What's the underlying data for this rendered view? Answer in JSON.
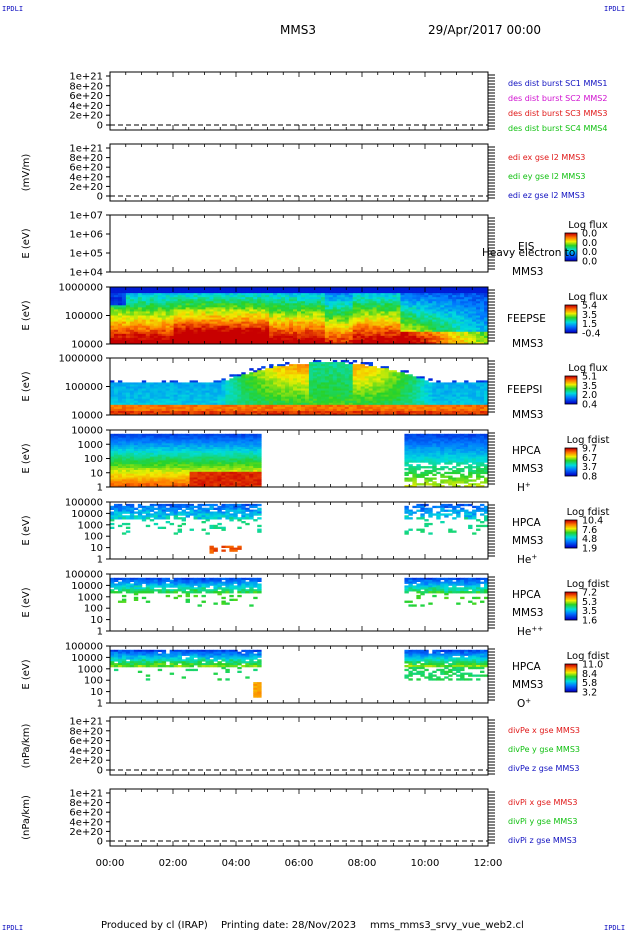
{
  "corners": {
    "tl": "IPDLI",
    "tr": "IPDLI",
    "bl": "IPDLI",
    "br": "IPDLI"
  },
  "header": {
    "spacecraft": "MMS3",
    "datetime": "29/Apr/2017 00:00"
  },
  "footer": {
    "produced_by": "Produced by cl (IRAP)",
    "printing_date": "Printing date: 28/Nov/2023",
    "file": "mms_mms3_srvy_vue_web2.cl"
  },
  "colors": {
    "red": "#e01818",
    "green": "#10c010",
    "blue": "#1010c0",
    "magenta": "#d010d0",
    "dashed_zero": "#000000"
  },
  "chart_data": [
    {
      "type": "line",
      "id": "p1",
      "ylabel": "",
      "yticks": [
        "1e+21",
        "8e+20",
        "6e+20",
        "4e+20",
        "2e+20",
        "0"
      ],
      "ylim": [
        0,
        1e+21
      ],
      "zero_line": "dashed",
      "legend": [
        {
          "text": "des dist burst SC1 MMS1",
          "color": "#1010c0"
        },
        {
          "text": "des dist burst SC2 MMS2",
          "color": "#d010d0"
        },
        {
          "text": "des dist burst SC3 MMS3",
          "color": "#e01818"
        },
        {
          "text": "des dist burst SC4 MMS4",
          "color": "#10c010"
        }
      ]
    },
    {
      "type": "line",
      "id": "p2",
      "ylabel": "(mV/m)",
      "yticks": [
        "1e+21",
        "8e+20",
        "6e+20",
        "4e+20",
        "2e+20",
        "0"
      ],
      "ylim": [
        0,
        1e+21
      ],
      "zero_line": "dashed",
      "legend": [
        {
          "text": "edi ex gse l2 MMS3",
          "color": "#e01818"
        },
        {
          "text": "edi ey gse l2 MMS3",
          "color": "#10c010"
        },
        {
          "text": "edi ez gse l2 MMS3",
          "color": "#1010c0"
        }
      ]
    },
    {
      "type": "heatmap",
      "id": "p3",
      "ylabel": "E (eV)",
      "yscale": "log",
      "yticks": [
        "1e+07",
        "1e+06",
        "1e+05",
        "1e+04"
      ],
      "instrument": "EIS",
      "spacecraft": "MMS3",
      "extra_label": "Heavy electron to",
      "cbar_title": "Log flux",
      "cbar_ticks": [
        "0.0",
        "0.0",
        "0.0",
        "0.0"
      ],
      "description": "empty"
    },
    {
      "type": "heatmap",
      "id": "p4",
      "ylabel": "E (eV)",
      "yscale": "log",
      "yticks": [
        "1000000",
        "100000",
        "10000"
      ],
      "instrument": "FEEPSE",
      "spacecraft": "MMS3",
      "cbar_title": "Log flux",
      "cbar_ticks": [
        "5.4",
        "3.5",
        "1.5",
        "-0.4"
      ],
      "coverage_hours": [
        0,
        12
      ]
    },
    {
      "type": "heatmap",
      "id": "p5",
      "ylabel": "E (eV)",
      "yscale": "log",
      "yticks": [
        "1000000",
        "100000",
        "10000"
      ],
      "instrument": "FEEPSI",
      "spacecraft": "MMS3",
      "cbar_title": "Log flux",
      "cbar_ticks": [
        "5.1",
        "3.5",
        "2.0",
        "0.4"
      ],
      "coverage_hours": [
        0,
        12
      ]
    },
    {
      "type": "heatmap",
      "id": "p6",
      "ylabel": "E (eV)",
      "yscale": "log",
      "yticks": [
        "10000",
        "1000",
        "100",
        "10",
        "1"
      ],
      "instrument": "HPCA",
      "spacecraft": "MMS3",
      "species": "H",
      "species_sup": "+",
      "cbar_title": "Log fdist",
      "cbar_ticks": [
        "9.7",
        "6.7",
        "3.7",
        "0.8"
      ],
      "coverage_hours": [
        [
          0,
          4.85
        ],
        [
          9.35,
          12
        ]
      ]
    },
    {
      "type": "heatmap",
      "id": "p7",
      "ylabel": "E (eV)",
      "yscale": "log",
      "yticks": [
        "100000",
        "10000",
        "1000",
        "100",
        "10",
        "1"
      ],
      "instrument": "HPCA",
      "spacecraft": "MMS3",
      "species": "He",
      "species_sup": "+",
      "cbar_title": "Log fdist",
      "cbar_ticks": [
        "10.4",
        "7.6",
        "4.8",
        "1.9"
      ],
      "coverage_hours": [
        [
          0,
          4.85
        ],
        [
          9.4,
          12
        ]
      ]
    },
    {
      "type": "heatmap",
      "id": "p8",
      "ylabel": "E (eV)",
      "yscale": "log",
      "yticks": [
        "100000",
        "10000",
        "1000",
        "100",
        "10",
        "1"
      ],
      "instrument": "HPCA",
      "spacecraft": "MMS3",
      "species": "He",
      "species_sup": "++",
      "cbar_title": "Log fdist",
      "cbar_ticks": [
        "7.2",
        "5.3",
        "3.5",
        "1.6"
      ],
      "coverage_hours": [
        [
          0,
          4.85
        ],
        [
          9.4,
          12
        ]
      ]
    },
    {
      "type": "heatmap",
      "id": "p9",
      "ylabel": "E (eV)",
      "yscale": "log",
      "yticks": [
        "100000",
        "10000",
        "1000",
        "100",
        "10",
        "1"
      ],
      "instrument": "HPCA",
      "spacecraft": "MMS3",
      "species": "O",
      "species_sup": "+",
      "cbar_title": "Log fdist",
      "cbar_ticks": [
        "11.0",
        "8.4",
        "5.8",
        "3.2"
      ],
      "coverage_hours": [
        [
          0,
          4.85
        ],
        [
          9.4,
          12
        ]
      ]
    },
    {
      "type": "line",
      "id": "p10",
      "ylabel": "(nPa/km)",
      "yticks": [
        "1e+21",
        "8e+20",
        "6e+20",
        "4e+20",
        "2e+20",
        "0"
      ],
      "ylim": [
        0,
        1e+21
      ],
      "zero_line": "dashed",
      "legend": [
        {
          "text": "divPe x gse MMS3",
          "color": "#e01818"
        },
        {
          "text": "divPe y gse MMS3",
          "color": "#10c010"
        },
        {
          "text": "divPe z gse MMS3",
          "color": "#1010c0"
        }
      ]
    },
    {
      "type": "line",
      "id": "p11",
      "ylabel": "(nPa/km)",
      "yticks": [
        "1e+21",
        "8e+20",
        "6e+20",
        "4e+20",
        "2e+20",
        "0"
      ],
      "ylim": [
        0,
        1e+21
      ],
      "zero_line": "dashed",
      "legend": [
        {
          "text": "divPi x gse MMS3",
          "color": "#e01818"
        },
        {
          "text": "divPi y gse MMS3",
          "color": "#10c010"
        },
        {
          "text": "divPi z gse MMS3",
          "color": "#1010c0"
        }
      ]
    }
  ],
  "xaxis": {
    "ticks": [
      "00:00",
      "02:00",
      "04:00",
      "06:00",
      "08:00",
      "10:00",
      "12:00"
    ],
    "range_hours": [
      0,
      12
    ]
  }
}
